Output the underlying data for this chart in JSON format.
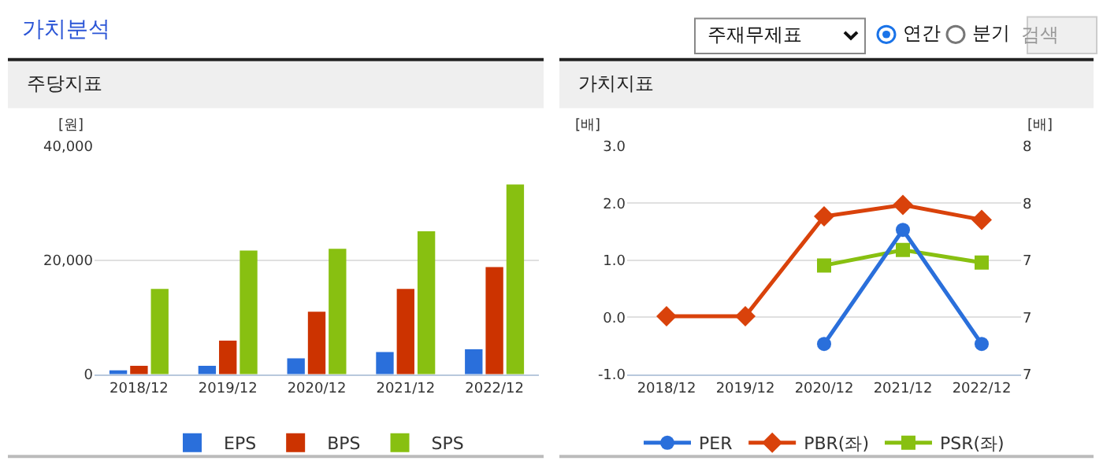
{
  "chart_data": [
    {
      "type": "other",
      "title": "가치분석",
      "annotations": [
        "주재무제표",
        "연간",
        "분기",
        "검색"
      ]
    },
    {
      "type": "bar",
      "title": "주당지표",
      "ylabel": "[원]",
      "categories": [
        "2018/12",
        "2019/12",
        "2020/12",
        "2021/12",
        "2022/12"
      ],
      "series": [
        {
          "name": "EPS",
          "color": "#2a6fdb",
          "values": [
            700,
            1500,
            2800,
            3900,
            4400
          ]
        },
        {
          "name": "BPS",
          "color": "#cc3300",
          "values": [
            1500,
            5900,
            11000,
            15000,
            18800
          ]
        },
        {
          "name": "SPS",
          "color": "#88c011",
          "values": [
            15000,
            21700,
            22000,
            25100,
            33300
          ]
        }
      ],
      "ylim": [
        0,
        40000
      ],
      "yticks": [
        {
          "value": 0,
          "label": "0"
        },
        {
          "value": 20000,
          "label": "20,000"
        },
        {
          "value": 40000,
          "label": "40,000"
        }
      ],
      "grid": "y",
      "legend": "bottom"
    },
    {
      "type": "line",
      "title": "가치지표",
      "ylabel": "[배]",
      "y2label": "[배]",
      "categories": [
        "2018/12",
        "2019/12",
        "2020/12",
        "2021/12",
        "2022/12"
      ],
      "series": [
        {
          "name": "PER",
          "color": "#2a6fdb",
          "axis": "y2",
          "marker": "circle",
          "values": [
            null,
            null,
            6.76,
            7.36,
            6.76
          ]
        },
        {
          "name": "PBR(좌)",
          "color": "#d9420b",
          "marker": "diamond",
          "values": [
            0.02,
            0.02,
            1.77,
            1.97,
            1.71
          ]
        },
        {
          "name": "PSR(좌)",
          "color": "#88c011",
          "marker": "square",
          "values": [
            null,
            null,
            0.91,
            1.18,
            0.96
          ]
        }
      ],
      "ylim": [
        -1,
        3
      ],
      "yticks": [
        {
          "value": -1,
          "label": "-1.0"
        },
        {
          "value": 0,
          "label": "0.0"
        },
        {
          "value": 1,
          "label": "1.0"
        },
        {
          "value": 2,
          "label": "2.0"
        },
        {
          "value": 3,
          "label": "3.0"
        }
      ],
      "y2lim": [
        6.6,
        7.8
      ],
      "y2ticks": [
        {
          "value": 6.6,
          "label": "7"
        },
        {
          "value": 6.9,
          "label": "7"
        },
        {
          "value": 7.2,
          "label": "7"
        },
        {
          "value": 7.5,
          "label": "8"
        },
        {
          "value": 7.8,
          "label": "8"
        }
      ],
      "grid": "y",
      "legend": "bottom",
      "line_style": "solid"
    }
  ]
}
